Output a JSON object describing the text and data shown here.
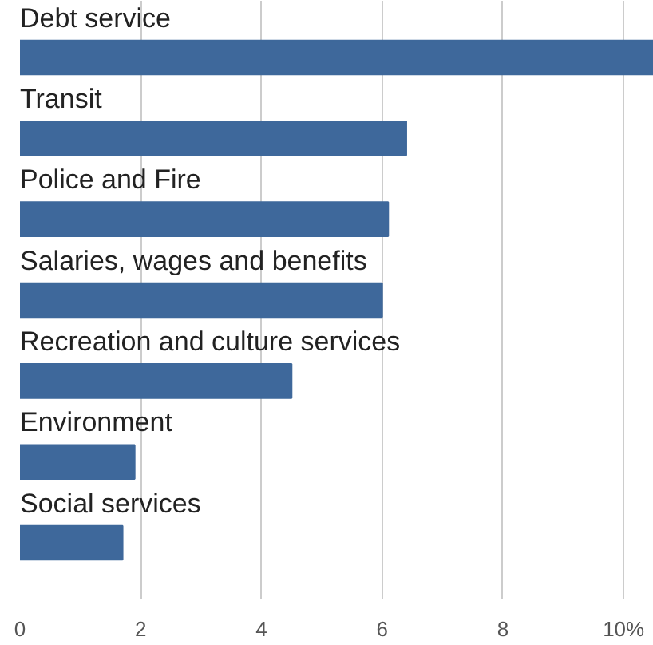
{
  "chart_data": {
    "type": "bar",
    "orientation": "horizontal",
    "categories": [
      "Debt service",
      "Transit",
      "Police and Fire",
      "Salaries, wages and benefits",
      "Recreation and culture services",
      "Environment",
      "Social services"
    ],
    "values": [
      10.5,
      6.4,
      6.1,
      6.0,
      4.5,
      1.9,
      1.7
    ],
    "color": "#3e689b",
    "xlim": [
      0,
      10.5
    ],
    "xticks": [
      0,
      2,
      4,
      6,
      8,
      {
        "value": 10,
        "label": "10%"
      }
    ],
    "grid": "x"
  }
}
